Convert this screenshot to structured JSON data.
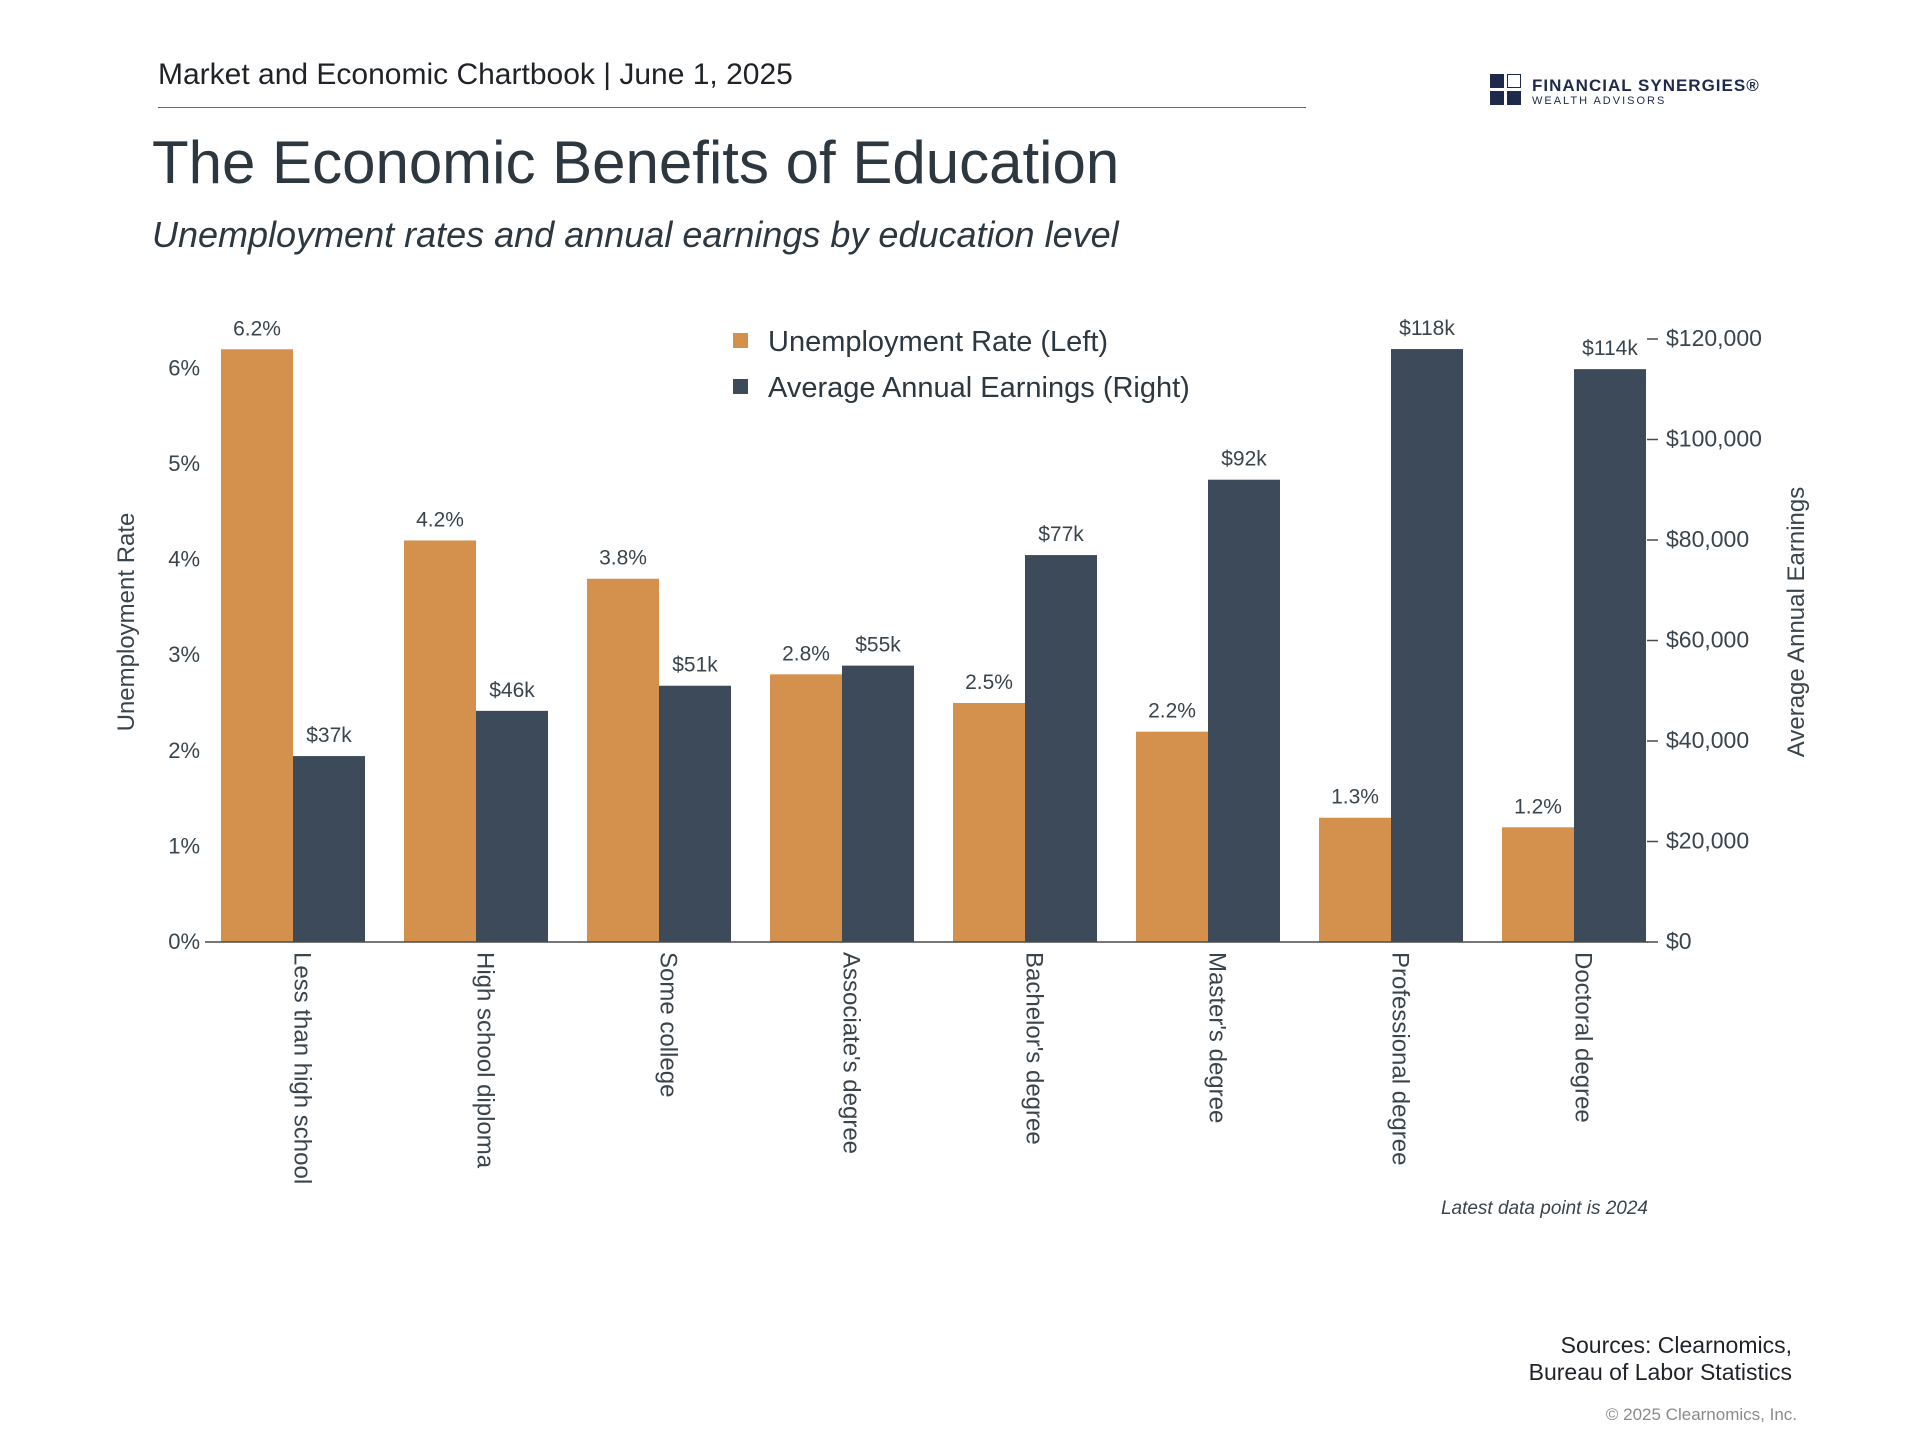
{
  "header": {
    "text": "Market and Economic Chartbook | June 1, 2025"
  },
  "logo": {
    "name": "FINANCIAL SYNERGIES®",
    "sub": "WEALTH ADVISORS",
    "color": "#1f2a4a"
  },
  "title": "The Economic Benefits of Education",
  "subtitle": "Unemployment rates and annual earnings by education level",
  "chart_data": {
    "type": "bar",
    "categories": [
      "Less than high school",
      "High school diploma",
      "Some college",
      "Associate's degree",
      "Bachelor's degree",
      "Master's degree",
      "Professional degree",
      "Doctoral degree"
    ],
    "series": [
      {
        "name": "Unemployment Rate (Left)",
        "axis": "left",
        "color": "#d4904d",
        "values": [
          6.2,
          4.2,
          3.8,
          2.8,
          2.5,
          2.2,
          1.3,
          1.2
        ],
        "labels": [
          "6.2%",
          "4.2%",
          "3.8%",
          "2.8%",
          "2.5%",
          "2.2%",
          "1.3%",
          "1.2%"
        ]
      },
      {
        "name": "Average Annual Earnings (Right)",
        "axis": "right",
        "color": "#3c4a59",
        "values": [
          37000,
          46000,
          51000,
          55000,
          77000,
          92000,
          118000,
          114000
        ],
        "labels": [
          "$37k",
          "$46k",
          "$51k",
          "$55k",
          "$77k",
          "$92k",
          "$118k",
          "$114k"
        ]
      }
    ],
    "ylabel_left": "Unemployment Rate",
    "ylabel_right": "Average Annual Earnings",
    "ylim_left": [
      0,
      6.3
    ],
    "ylim_right": [
      0,
      120000
    ],
    "yticks_left": [
      0,
      1,
      2,
      3,
      4,
      5,
      6
    ],
    "yticks_left_labels": [
      "0%",
      "1%",
      "2%",
      "3%",
      "4%",
      "5%",
      "6%"
    ],
    "yticks_right": [
      0,
      20000,
      40000,
      60000,
      80000,
      100000,
      120000
    ],
    "yticks_right_labels": [
      "$0",
      "$20,000",
      "$40,000",
      "$60,000",
      "$80,000",
      "$100,000",
      "$120,000"
    ],
    "legend": "top-center",
    "grid": false
  },
  "note": "Latest data point is 2024",
  "sources": [
    "Sources: Clearnomics,",
    "Bureau of Labor Statistics"
  ],
  "copyright": "© 2025 Clearnomics, Inc."
}
